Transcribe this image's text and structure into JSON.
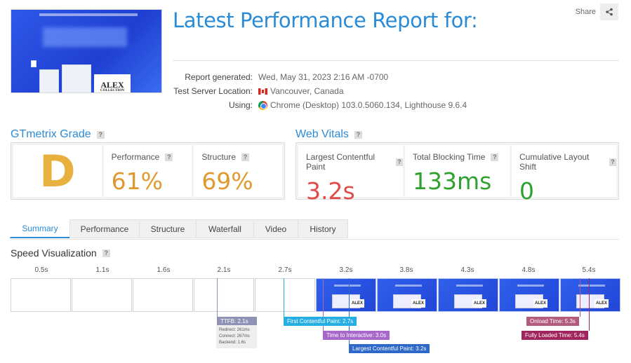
{
  "header": {
    "title": "Latest Performance Report for:",
    "share_label": "Share",
    "meta": [
      {
        "key": "Report generated:",
        "value": "Wed, May 31, 2023 2:16 AM -0700"
      },
      {
        "key": "Test Server Location:",
        "value": "Vancouver, Canada"
      },
      {
        "key": "Using:",
        "value": "Chrome (Desktop) 103.0.5060.134, Lighthouse 9.6.4"
      }
    ],
    "thumbnail_text": "ALEX",
    "thumbnail_sub": "COLLECTION"
  },
  "grade": {
    "title": "GTmetrix Grade",
    "letter": "D",
    "performance_label": "Performance",
    "performance_value": "61%",
    "structure_label": "Structure",
    "structure_value": "69%"
  },
  "vitals": {
    "title": "Web Vitals",
    "lcp_label": "Largest Contentful Paint",
    "lcp_value": "3.2s",
    "tbt_label": "Total Blocking Time",
    "tbt_value": "133ms",
    "cls_label": "Cumulative Layout Shift",
    "cls_value": "0"
  },
  "tabs": [
    "Summary",
    "Performance",
    "Structure",
    "Waterfall",
    "Video",
    "History"
  ],
  "active_tab": "Summary",
  "speed": {
    "title": "Speed Visualization",
    "ticks": [
      "0.5s",
      "1.1s",
      "1.6s",
      "2.1s",
      "2.7s",
      "3.2s",
      "3.8s",
      "4.3s",
      "4.8s",
      "5.4s"
    ],
    "markers": {
      "ttfb": "TTFB: 2.1s",
      "ttfb_redirect": "Redirect: 261ms",
      "ttfb_connect": "Connect: 267ms",
      "ttfb_backend": "Backend: 1.6s",
      "fcp": "First Contentful Paint: 2.7s",
      "tti": "Time to Interactive: 3.0s",
      "lcp": "Largest Contentful Paint: 3.2s",
      "onload": "Onload Time: 5.3s",
      "fully_loaded": "Fully Loaded Time: 5.4s"
    },
    "frame_text": "ALEX"
  },
  "colors": {
    "brand_blue": "#2a8bd7",
    "grade_orange": "#e09830",
    "vital_red": "#e24a4a",
    "vital_green": "#2fa12f",
    "ttfb": "#8f92b5",
    "fcp": "#25aee4",
    "tti": "#a768c9",
    "lcp": "#2e69c9",
    "onload": "#b35a7d",
    "fully_loaded": "#a0245d"
  }
}
